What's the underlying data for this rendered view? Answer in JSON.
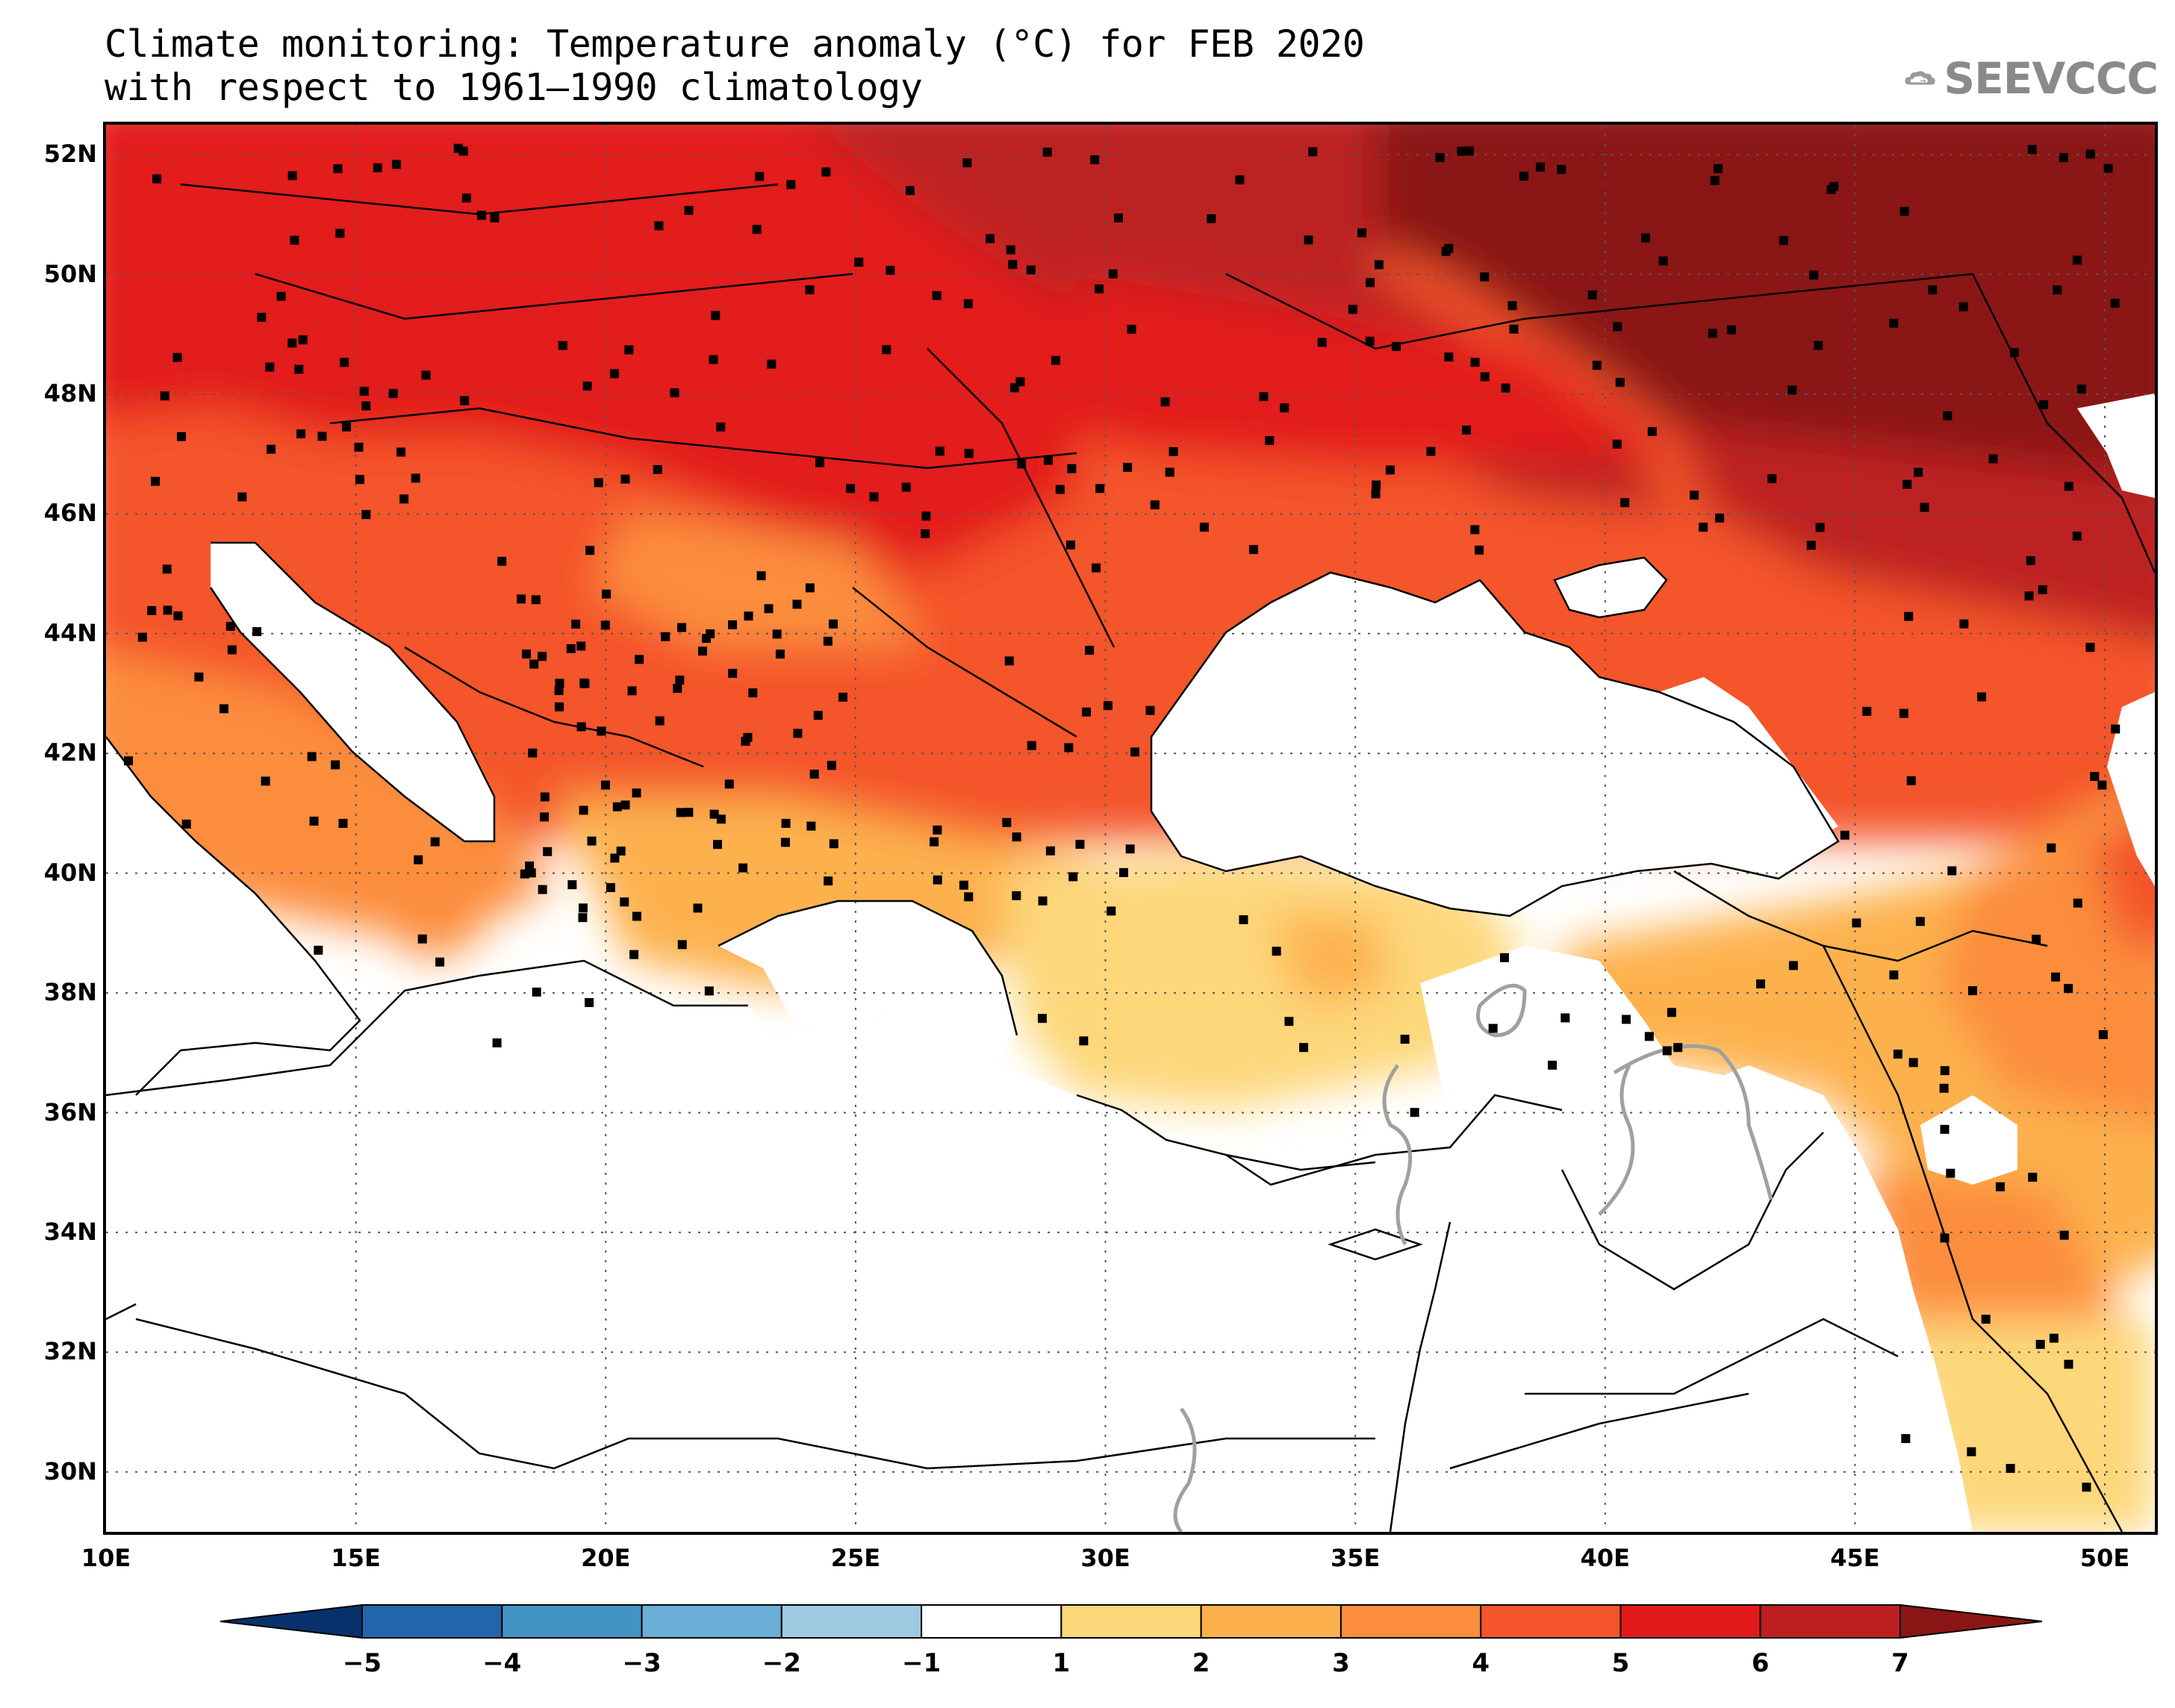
{
  "title": {
    "line1": "Climate monitoring: Temperature anomaly (°C) for FEB 2020",
    "line2": "with respect to 1961–1990 climatology"
  },
  "logo": {
    "text": "SEEVCCC",
    "icon": "cloud-icon"
  },
  "map": {
    "extent": {
      "lon_min": 10,
      "lon_max": 51,
      "lat_min": 29,
      "lat_max": 52.5
    },
    "lat_ticks": [
      {
        "value": 52,
        "label": "52N"
      },
      {
        "value": 50,
        "label": "50N"
      },
      {
        "value": 48,
        "label": "48N"
      },
      {
        "value": 46,
        "label": "46N"
      },
      {
        "value": 44,
        "label": "44N"
      },
      {
        "value": 42,
        "label": "42N"
      },
      {
        "value": 40,
        "label": "40N"
      },
      {
        "value": 38,
        "label": "38N"
      },
      {
        "value": 36,
        "label": "36N"
      },
      {
        "value": 34,
        "label": "34N"
      },
      {
        "value": 32,
        "label": "32N"
      },
      {
        "value": 30,
        "label": "30N"
      }
    ],
    "lon_ticks": [
      {
        "value": 10,
        "label": "10E"
      },
      {
        "value": 15,
        "label": "15E"
      },
      {
        "value": 20,
        "label": "20E"
      },
      {
        "value": 25,
        "label": "25E"
      },
      {
        "value": 30,
        "label": "30E"
      },
      {
        "value": 35,
        "label": "35E"
      },
      {
        "value": 40,
        "label": "40E"
      },
      {
        "value": 45,
        "label": "45E"
      },
      {
        "value": 50,
        "label": "50E"
      }
    ],
    "grid": "dotted",
    "station_markers": "black squares"
  },
  "colorbar": {
    "boundaries": [
      "−5",
      "−4",
      "−3",
      "−2",
      "−1",
      "1",
      "2",
      "3",
      "4",
      "5",
      "6",
      "7"
    ],
    "colors": {
      "below_min": "#08306b",
      "c1": "#2166ac",
      "c2": "#4393c3",
      "c3": "#6baed6",
      "c4": "#9ecae1",
      "neutral": "#ffffff",
      "w1": "#fdd77a",
      "w2": "#fdb14d",
      "w3": "#fc8d3c",
      "w4": "#f4552a",
      "w5": "#e31a1c",
      "w6": "#bd2020",
      "above_max": "#8b1515"
    }
  }
}
